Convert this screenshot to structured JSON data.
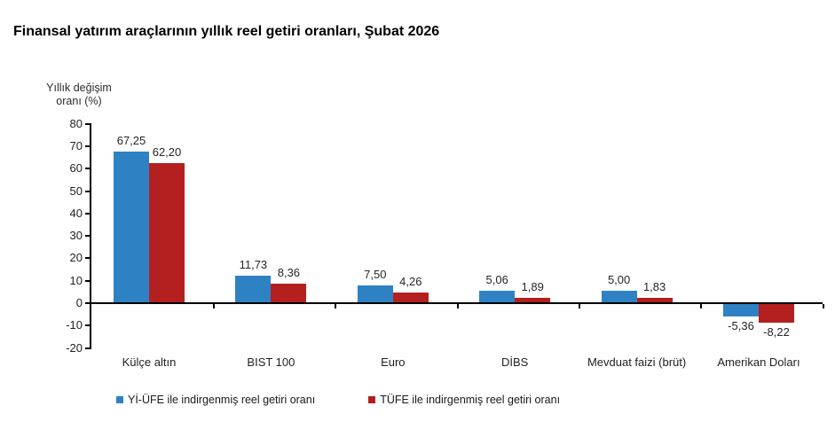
{
  "chart_data": {
    "type": "bar",
    "title": "Finansal yatırım araçlarının yıllık reel getiri oranları, Şubat 2026",
    "ylabel": "Yıllık değişim oranı (%)",
    "ylabel_lines": [
      "Yıllık değişim",
      "oranı (%)"
    ],
    "xlabel": "",
    "ylim": [
      -20,
      80
    ],
    "yticks": [
      80,
      70,
      60,
      50,
      40,
      30,
      20,
      10,
      0,
      -10,
      -20
    ],
    "grid": false,
    "legend_position": "bottom",
    "categories": [
      "Külçe altın",
      "BIST 100",
      "Euro",
      "DİBS",
      "Mevduat faizi (brüt)",
      "Amerikan Doları"
    ],
    "series": [
      {
        "name": "Yİ-ÜFE ile indirgenmiş reel getiri oranı",
        "color": "#2E82C4",
        "values": [
          67.25,
          11.73,
          7.5,
          5.06,
          5.0,
          -5.36
        ],
        "labels": [
          "67,25",
          "11,73",
          "7,50",
          "5,06",
          "5,00",
          "-5,36"
        ]
      },
      {
        "name": "TÜFE ile indirgenmiş reel getiri oranı",
        "color": "#B41F1F",
        "values": [
          62.2,
          8.36,
          4.26,
          1.89,
          1.83,
          -8.22
        ],
        "labels": [
          "62,20",
          "8,36",
          "4,26",
          "1,89",
          "1,83",
          "-8,22"
        ]
      }
    ]
  }
}
